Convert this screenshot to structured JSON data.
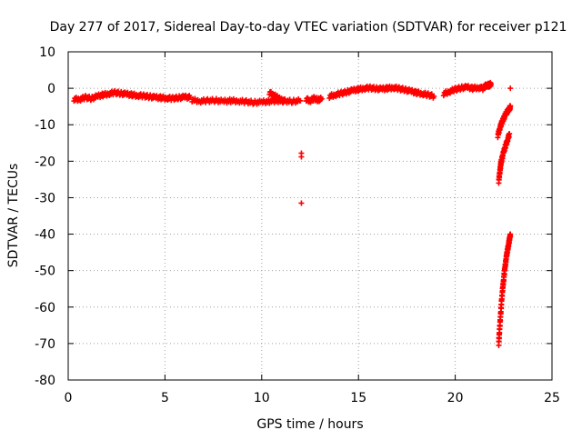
{
  "chart_data": {
    "type": "scatter",
    "title": "Day 277 of 2017, Sidereal Day-to-day VTEC variation (SDTVAR) for receiver p121",
    "xlabel": "GPS time / hours",
    "ylabel": "SDTVAR / TECUs",
    "xlim": [
      0,
      25
    ],
    "ylim": [
      -80,
      10
    ],
    "xticks": [
      0,
      5,
      10,
      15,
      20,
      25
    ],
    "yticks": [
      10,
      0,
      -10,
      -20,
      -30,
      -40,
      -50,
      -60,
      -70,
      -80
    ],
    "grid": true,
    "marker": "plus",
    "color": "#ff0000",
    "series": [
      {
        "name": "SDTVAR",
        "curves": [
          {
            "x": [
              0.3,
              0.6,
              0.9,
              1.2,
              1.5,
              1.8,
              2.1,
              2.4,
              2.7,
              3.0,
              3.3,
              3.6,
              3.9,
              4.2,
              4.5,
              4.8,
              5.1,
              5.4,
              5.7,
              6.0,
              6.3
            ],
            "y": [
              -3,
              -3,
              -2.5,
              -2.8,
              -2.2,
              -1.8,
              -1.5,
              -1.2,
              -1.4,
              -1.6,
              -1.8,
              -2.0,
              -2.1,
              -2.3,
              -2.5,
              -2.6,
              -2.7,
              -2.8,
              -2.6,
              -2.4,
              -2.5
            ]
          },
          {
            "x": [
              6.4,
              6.8,
              7.2,
              7.6,
              8.0,
              8.4,
              8.8,
              9.2,
              9.6,
              10.0,
              10.4,
              10.8,
              11.2,
              11.6,
              12.0
            ],
            "y": [
              -3.2,
              -3.5,
              -3.4,
              -3.3,
              -3.6,
              -3.4,
              -3.5,
              -3.7,
              -3.9,
              -3.8,
              -3.6,
              -3.4,
              -3.5,
              -3.6,
              -3.4
            ]
          },
          {
            "x": [
              10.4,
              10.6,
              10.8,
              11.0,
              11.2
            ],
            "y": [
              -1.2,
              -1.8,
              -2.5,
              -3.2,
              -3.6
            ]
          },
          {
            "x": [
              12.3,
              12.5,
              12.7,
              12.9,
              13.1
            ],
            "y": [
              -3.0,
              -3.4,
              -2.8,
              -3.2,
              -2.9
            ]
          },
          {
            "x": [
              13.5,
              13.8,
              14.1,
              14.4,
              14.7,
              15.0,
              15.3,
              15.6,
              15.9,
              16.2,
              16.5,
              16.8,
              17.1,
              17.4,
              17.7,
              18.0,
              18.3,
              18.6,
              18.9
            ],
            "y": [
              -2.2,
              -1.8,
              -1.4,
              -1.0,
              -0.6,
              -0.3,
              0.0,
              0.1,
              -0.1,
              -0.2,
              0.0,
              0.2,
              -0.1,
              -0.4,
              -0.8,
              -1.2,
              -1.5,
              -1.8,
              -2.2
            ]
          },
          {
            "x": [
              19.4,
              19.7,
              20.0,
              20.3,
              20.6,
              20.9,
              21.2,
              21.5
            ],
            "y": [
              -1.5,
              -0.9,
              -0.3,
              0.1,
              0.3,
              0.0,
              0.2,
              -0.1
            ]
          },
          {
            "x": [
              21.5,
              21.65,
              21.75,
              21.85
            ],
            "y": [
              0.5,
              0.9,
              0.8,
              1.2
            ]
          },
          {
            "x": [
              22.2,
              22.3,
              22.4,
              22.5,
              22.6,
              22.7,
              22.8,
              22.85
            ],
            "y": [
              -13.0,
              -11.0,
              -9.5,
              -8.3,
              -7.2,
              -6.3,
              -5.6,
              -5.0
            ]
          },
          {
            "x": [
              22.25,
              22.3,
              22.35,
              22.4,
              22.5,
              22.6,
              22.7,
              22.8
            ],
            "y": [
              -25.5,
              -23.0,
              -21.0,
              -19.5,
              -17.5,
              -15.8,
              -14.2,
              -12.5
            ]
          },
          {
            "x": [
              22.25,
              22.28,
              22.32,
              22.36,
              22.4,
              22.45,
              22.5,
              22.55,
              22.6,
              22.65,
              22.7,
              22.75,
              22.8,
              22.85
            ],
            "y": [
              -70.0,
              -67.0,
              -64.0,
              -61.0,
              -58.0,
              -55.0,
              -52.5,
              -50.0,
              -48.0,
              -46.0,
              -44.5,
              -43.0,
              -41.5,
              -40.0
            ]
          },
          {
            "x": [
              12.05,
              12.05,
              12.05
            ],
            "y": [
              -17.8,
              -18.8,
              -31.5
            ]
          },
          {
            "x": [
              22.85
            ],
            "y": [
              0.0
            ]
          }
        ]
      }
    ]
  }
}
